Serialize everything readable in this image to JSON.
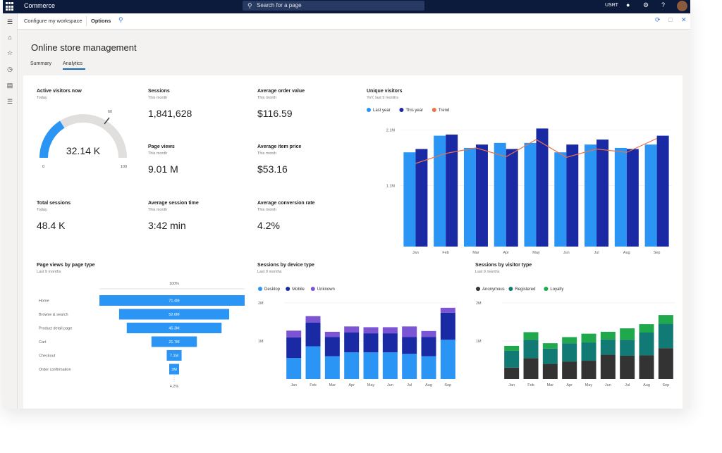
{
  "topbar": {
    "app_name": "Commerce",
    "search_placeholder": "Search for a page",
    "user_label": "USRT"
  },
  "actionbar": {
    "configure": "Configure my workspace",
    "options": "Options"
  },
  "page": {
    "title": "Online store management",
    "tabs": [
      {
        "label": "Summary",
        "selected": false
      },
      {
        "label": "Analytics",
        "selected": true
      }
    ]
  },
  "kpis": {
    "active_visitors": {
      "label": "Active visitors now",
      "sub": "Today",
      "value": "32.14 K",
      "gauge_min": "0",
      "gauge_mid": "60",
      "gauge_max": "100",
      "gauge_value": 32.14
    },
    "sessions": {
      "label": "Sessions",
      "sub": "This month",
      "value": "1,841,628"
    },
    "avg_order_value": {
      "label": "Average order value",
      "sub": "This month",
      "value": "$116.59"
    },
    "page_views": {
      "label": "Page views",
      "sub": "This month",
      "value": "9.01 M"
    },
    "avg_item_price": {
      "label": "Average item price",
      "sub": "This month",
      "value": "$53.16"
    },
    "total_sessions": {
      "label": "Total sessions",
      "sub": "Today",
      "value": "48.4 K"
    },
    "avg_session_time": {
      "label": "Average session time",
      "sub": "This month",
      "value": "3:42 min"
    },
    "avg_conversion_rate": {
      "label": "Average conversion rate",
      "sub": "This month",
      "value": "4.2%"
    }
  },
  "colors": {
    "last_year": "#2a95f5",
    "this_year": "#1a2aa5",
    "trend": "#e8734a",
    "desktop": "#2a95f5",
    "mobile": "#1a2aa5",
    "unknown": "#7b55d3",
    "anonymous": "#333333",
    "registered": "#127a74",
    "loyalty": "#1fa84c",
    "funnel": "#2a95f5"
  },
  "chart_data": [
    {
      "type": "bar",
      "title": "Unique visitors",
      "subtitle": "YoY, last 9 months",
      "categories": [
        "Jan",
        "Feb",
        "Mar",
        "Apr",
        "May",
        "Jun",
        "Jul",
        "Aug",
        "Sep"
      ],
      "series": [
        {
          "name": "Last year",
          "values": [
            1.7,
            2.0,
            1.78,
            1.87,
            1.87,
            1.7,
            1.84,
            1.78,
            1.84
          ]
        },
        {
          "name": "This year",
          "values": [
            1.76,
            2.02,
            1.84,
            1.76,
            2.13,
            1.84,
            1.93,
            1.76,
            2.0
          ]
        },
        {
          "name": "Trend",
          "values": [
            1.5,
            1.68,
            1.78,
            1.62,
            1.93,
            1.61,
            1.76,
            1.7,
            1.95
          ]
        }
      ],
      "yticks": [
        {
          "value": 1.1,
          "label": "1.1M"
        },
        {
          "value": 2.1,
          "label": "2.1M"
        }
      ],
      "ylim": [
        0,
        2.3
      ],
      "legend": "top-left"
    },
    {
      "type": "funnel",
      "title": "Page views by page type",
      "subtitle": "Last 9 months",
      "top_label": "100%",
      "bottom_label": "4.2%",
      "categories": [
        "Home",
        "Browse & search",
        "Product detail page",
        "Cart",
        "Checkout",
        "Order confirmation"
      ],
      "values": [
        71.4,
        52.6,
        45.3,
        21.7,
        7.1,
        3.0
      ],
      "value_labels": [
        "71.4M",
        "52.6M",
        "45.3M",
        "21.7M",
        "7.1M",
        "3M"
      ]
    },
    {
      "type": "bar",
      "stacked": true,
      "title": "Sessions by device type",
      "subtitle": "Last 9 months",
      "categories": [
        "Jan",
        "Feb",
        "Mar",
        "Apr",
        "May",
        "Jun",
        "Jul",
        "Aug",
        "Sep"
      ],
      "series": [
        {
          "name": "Desktop",
          "values": [
            0.55,
            0.86,
            0.6,
            0.7,
            0.7,
            0.7,
            0.66,
            0.6,
            1.03
          ]
        },
        {
          "name": "Mobile",
          "values": [
            0.54,
            0.62,
            0.5,
            0.52,
            0.5,
            0.5,
            0.44,
            0.5,
            0.71
          ]
        },
        {
          "name": "Unknown",
          "values": [
            0.18,
            0.17,
            0.14,
            0.16,
            0.16,
            0.16,
            0.28,
            0.16,
            0.13
          ]
        }
      ],
      "yticks": [
        {
          "value": 1,
          "label": "1M"
        },
        {
          "value": 2,
          "label": "2M"
        }
      ],
      "ylim": [
        0,
        2.2
      ],
      "legend": "top-left"
    },
    {
      "type": "bar",
      "stacked": true,
      "title": "Sessions by visitor type",
      "subtitle": "Last 9 months",
      "categories": [
        "Jan",
        "Feb",
        "Mar",
        "Apr",
        "May",
        "Jun",
        "Jul",
        "Aug",
        "Sep"
      ],
      "series": [
        {
          "name": "Anonymous",
          "values": [
            0.3,
            0.55,
            0.4,
            0.46,
            0.48,
            0.64,
            0.61,
            0.62,
            0.81
          ]
        },
        {
          "name": "Registered",
          "values": [
            0.44,
            0.48,
            0.4,
            0.48,
            0.48,
            0.4,
            0.42,
            0.6,
            0.64
          ]
        },
        {
          "name": "Loyalty",
          "values": [
            0.13,
            0.2,
            0.14,
            0.16,
            0.23,
            0.2,
            0.3,
            0.22,
            0.23
          ]
        }
      ],
      "yticks": [
        {
          "value": 1,
          "label": "1M"
        },
        {
          "value": 2,
          "label": "2M"
        }
      ],
      "ylim": [
        0,
        2.2
      ],
      "legend": "top-left"
    }
  ]
}
